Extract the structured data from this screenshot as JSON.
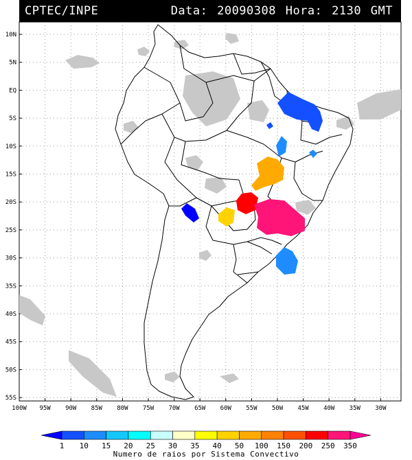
{
  "header": {
    "left": "CPTEC/INPE",
    "right": "Data: 20090308 Hora: 2130 GMT"
  },
  "map": {
    "lat_labels": [
      "10N",
      "5N",
      "EQ",
      "5S",
      "10S",
      "15S",
      "20S",
      "25S",
      "30S",
      "35S",
      "40S",
      "45S",
      "50S",
      "55S"
    ],
    "lon_labels": [
      "100W",
      "95W",
      "90W",
      "85W",
      "80W",
      "75W",
      "70W",
      "65W",
      "60W",
      "55W",
      "50W",
      "45W",
      "40W",
      "35W",
      "30W"
    ]
  },
  "colorbar": {
    "labels": [
      "1",
      "10",
      "15",
      "20",
      "25",
      "30",
      "35",
      "40",
      "50",
      "100",
      "150",
      "200",
      "250",
      "350"
    ],
    "colors": [
      "#0000ff",
      "#1450ff",
      "#1e8cff",
      "#14c8ff",
      "#00ffff",
      "#c8ffff",
      "#ffffc8",
      "#ffff00",
      "#ffd200",
      "#ffaa00",
      "#ff8200",
      "#ff5000",
      "#ff0000",
      "#ff1478",
      "#ff0096"
    ],
    "title": "Numero de raios por Sistema Convectivo"
  },
  "systems": [
    {
      "name": "ne-brazil",
      "color": "#1450ff"
    },
    {
      "name": "central-west",
      "color": "#1e8cff"
    },
    {
      "name": "goias",
      "color": "#ffaa00"
    },
    {
      "name": "mato-grosso-do-sul",
      "color": "#ff0000"
    },
    {
      "name": "sao-paulo",
      "color": "#ff1478"
    },
    {
      "name": "paraguay",
      "color": "#ffd200"
    },
    {
      "name": "north-argentina",
      "color": "#0000ff"
    },
    {
      "name": "south-brazil",
      "color": "#1e8cff"
    }
  ]
}
